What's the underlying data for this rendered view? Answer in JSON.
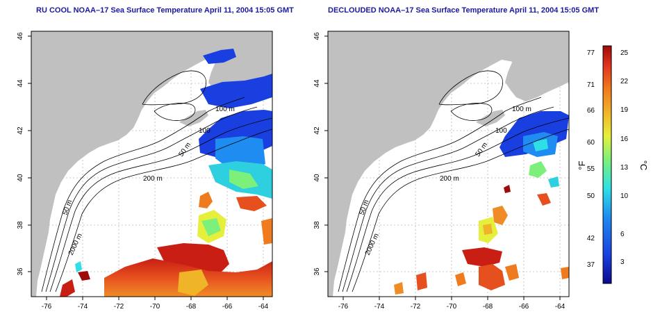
{
  "titles": {
    "left": "RU COOL NOAA–17 Sea Surface Temperature April 11, 2004 15:05 GMT",
    "right": "DECLOUDED NOAA–17 Sea Surface Temperature April 11, 2004 15:05 GMT"
  },
  "axes": {
    "lon_ticks": [
      "-76",
      "-74",
      "-72",
      "-70",
      "-68",
      "-66",
      "-64"
    ],
    "lat_ticks": [
      "36",
      "38",
      "40",
      "42",
      "44",
      "46"
    ]
  },
  "contour_labels": {
    "left": [
      "100 m",
      "100",
      "50 m",
      "200 m",
      "50 m",
      "2000 m"
    ],
    "right": [
      "100 m",
      "100",
      "50 m",
      "200 m",
      "50 m",
      "2000 m"
    ]
  },
  "colorbar": {
    "fahrenheit_ticks": [
      "77",
      "71",
      "66",
      "60",
      "55",
      "50",
      "42",
      "37"
    ],
    "celsius_ticks": [
      "25",
      "22",
      "19",
      "16",
      "13",
      "10",
      "6",
      "3"
    ],
    "fahrenheit_unit": "°F",
    "celsius_unit": "°C",
    "colors": [
      "#0a0a8c",
      "#1a3fe0",
      "#1e8cf0",
      "#2ee0e6",
      "#7cf07a",
      "#e6f03c",
      "#f0b428",
      "#f07a1e",
      "#e0321e",
      "#9c0a0a"
    ]
  },
  "colors": {
    "land": "#c0c0c0",
    "ocean": "#ffffff",
    "title": "#1a1a9c",
    "grid": "#b8b8b8"
  }
}
